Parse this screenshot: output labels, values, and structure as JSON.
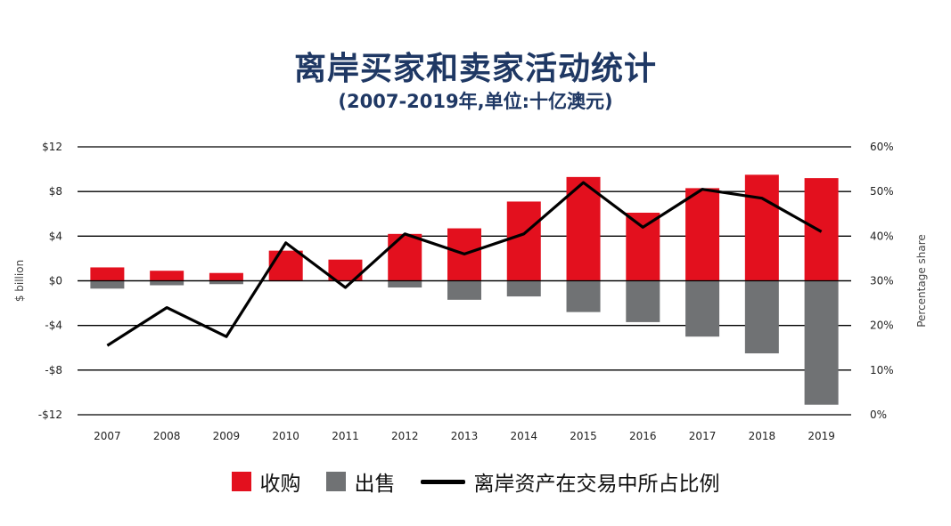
{
  "title": "离岸买家和卖家活动统计",
  "subtitle": "(2007-2019年,单位:十亿澳元)",
  "colors": {
    "purchases": "#e3101e",
    "sales": "#707274",
    "share": "#000000",
    "title": "#1f3864"
  },
  "chart_data": {
    "type": "bar",
    "title": "离岸买家和卖家活动统计",
    "subtitle": "(2007-2019年,单位:十亿澳元)",
    "categories": [
      "2007",
      "2008",
      "2009",
      "2010",
      "2011",
      "2012",
      "2013",
      "2014",
      "2015",
      "2016",
      "2017",
      "2018",
      "2019"
    ],
    "series": [
      {
        "name": "收购",
        "kind": "bar",
        "axis": "left",
        "values": [
          1.2,
          0.9,
          0.7,
          2.7,
          1.9,
          4.2,
          4.7,
          7.1,
          9.3,
          6.1,
          8.3,
          9.5,
          9.2
        ]
      },
      {
        "name": "出售",
        "kind": "bar",
        "axis": "left",
        "values": [
          -0.7,
          -0.4,
          -0.3,
          0.0,
          0.0,
          -0.6,
          -1.7,
          -1.4,
          -2.8,
          -3.7,
          -5.0,
          -6.5,
          -11.1
        ]
      },
      {
        "name": "离岸资产在交易中所占比例",
        "kind": "line",
        "axis": "right",
        "values": [
          15.5,
          24,
          17.5,
          38.5,
          28.5,
          40.5,
          36,
          40.5,
          52,
          42,
          50.5,
          48.5,
          41
        ]
      }
    ],
    "ylabel": "$ billion",
    "y2label": "Percentage share",
    "ylim": [
      -12,
      12
    ],
    "y2lim": [
      0,
      60
    ],
    "yticks": [
      "$12",
      "$8",
      "$4",
      "$0",
      "-$4",
      "-$8",
      "-$12"
    ],
    "y2ticks": [
      "60%",
      "50%",
      "40%",
      "30%",
      "20%",
      "10%",
      "0%"
    ],
    "grid": true,
    "legend_position": "bottom"
  }
}
